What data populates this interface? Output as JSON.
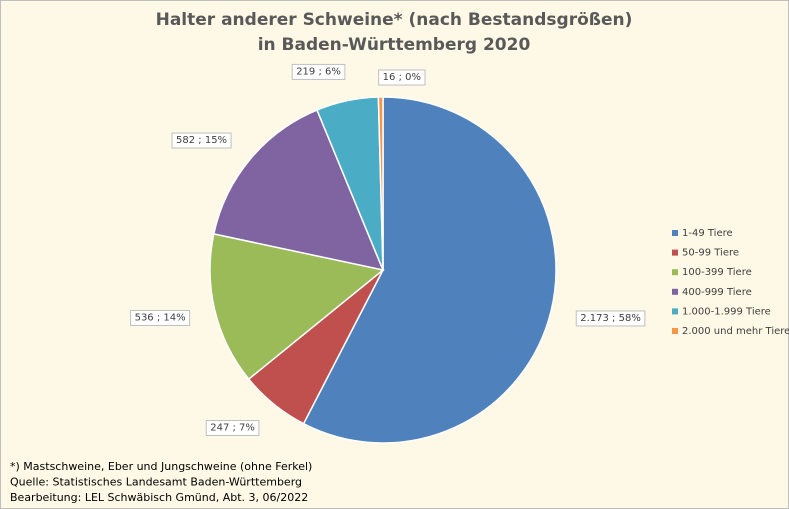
{
  "chart_data": {
    "type": "pie",
    "title": [
      "Halter anderer Schweine* (nach Bestandsgrößen)",
      "in Baden-Württemberg 2020"
    ],
    "categories": [
      "1-49 Tiere",
      "50-99 Tiere",
      "100-399 Tiere",
      "400-999 Tiere",
      "1.000-1.999 Tiere",
      "2.000 und mehr Tiere"
    ],
    "values": [
      2173,
      247,
      536,
      582,
      219,
      16
    ],
    "value_labels": [
      "2.173  ; 58%",
      "247  ; 7%",
      "536  ; 14%",
      "582  ; 15%",
      "219  ; 6%",
      "16  ; 0%"
    ],
    "colors": [
      "#4f81bd",
      "#c0504d",
      "#9bbb59",
      "#8064a2",
      "#4bacc6",
      "#f79646"
    ],
    "legend": "right",
    "notes": [
      "*) Mastschweine, Eber und Jungschweine (ohne Ferkel)",
      "Quelle: Statistisches Landesamt Baden-Württemberg",
      "Bearbeitung: LEL Schwäbisch Gmünd, Abt. 3, 06/2022"
    ]
  }
}
